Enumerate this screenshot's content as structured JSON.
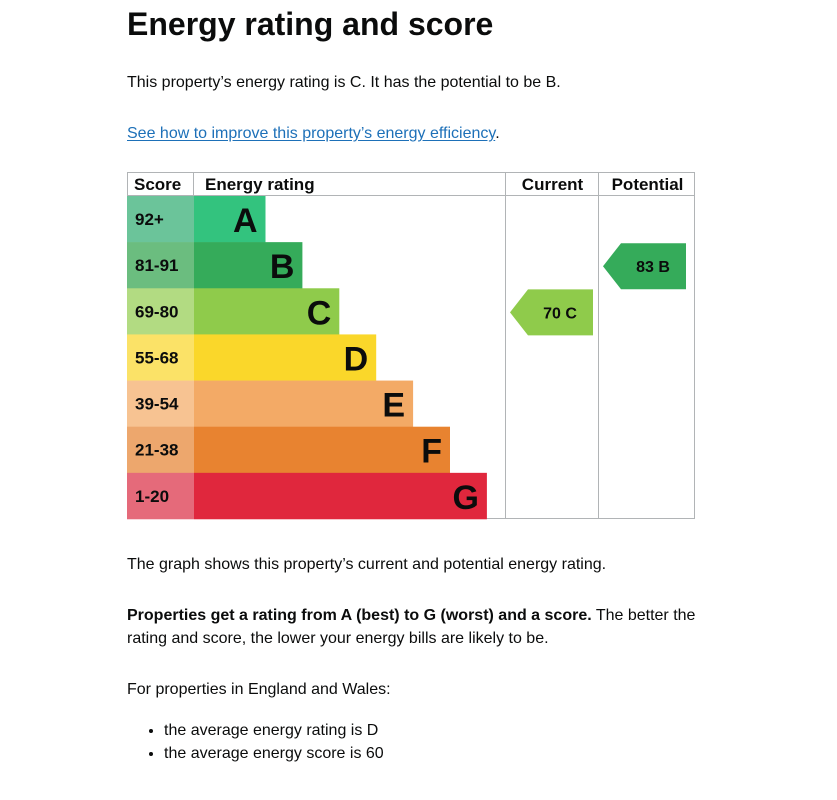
{
  "heading": "Energy rating and score",
  "intro": "This property’s energy rating is C. It has the potential to be B.",
  "link": {
    "text": "See how to improve this property’s energy efficiency",
    "suffix": ".",
    "color": "#1d70b8"
  },
  "chart_data": {
    "type": "table",
    "title": "Energy rating and score",
    "headers": {
      "score": "Score",
      "rating": "Energy rating",
      "current": "Current",
      "potential": "Potential"
    },
    "bands": [
      {
        "score": "92+",
        "letter": "A",
        "color": "#33c37e",
        "score_bg": "#6bc49a"
      },
      {
        "score": "81-91",
        "letter": "B",
        "color": "#35ab5a",
        "score_bg": "#6bbd7f"
      },
      {
        "score": "69-80",
        "letter": "C",
        "color": "#8fcb4b",
        "score_bg": "#b2db82"
      },
      {
        "score": "55-68",
        "letter": "D",
        "color": "#fad72a",
        "score_bg": "#fbe267"
      },
      {
        "score": "39-54",
        "letter": "E",
        "color": "#f3aa66",
        "score_bg": "#f7c392"
      },
      {
        "score": "21-38",
        "letter": "F",
        "color": "#e88330",
        "score_bg": "#eda76d"
      },
      {
        "score": "1-20",
        "letter": "G",
        "color": "#e0273d",
        "score_bg": "#e56a7a"
      }
    ],
    "current": {
      "score": 70,
      "letter": "C",
      "label": "70  C",
      "color": "#8fcb4b"
    },
    "potential": {
      "score": 83,
      "letter": "B",
      "label": "83  B",
      "color": "#35ab5a"
    }
  },
  "graph_description": "The graph shows this property’s current and potential energy rating.",
  "rating_info": {
    "bold": "Properties get a rating from A (best) to G (worst) and a score.",
    "rest": " The better the rating and score, the lower your energy bills are likely to be."
  },
  "england_wales": {
    "label": "For properties in England and Wales:",
    "items": [
      "the average energy rating is D",
      "the average energy score is 60"
    ]
  }
}
